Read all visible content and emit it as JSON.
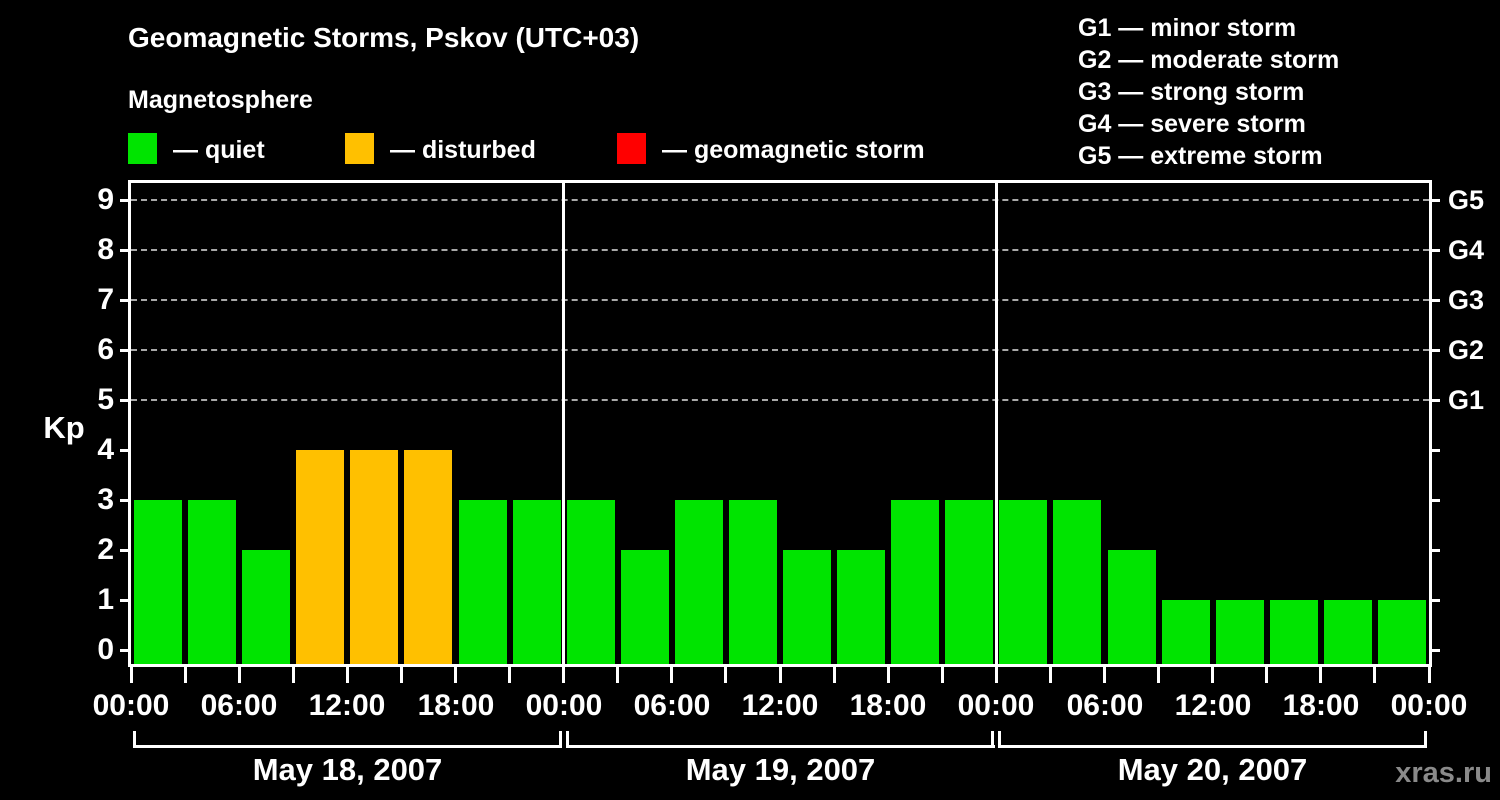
{
  "header": {
    "title": "Geomagnetic Storms, Pskov (UTC+03)",
    "subtitle": "Magnetosphere"
  },
  "legend": {
    "items": [
      {
        "name": "quiet",
        "label": "— quiet",
        "color": "#00e400"
      },
      {
        "name": "disturbed",
        "label": "— disturbed",
        "color": "#ffc000"
      },
      {
        "name": "geomagnetic-storm",
        "label": "— geomagnetic storm",
        "color": "#ff0000"
      }
    ]
  },
  "storm_scale_legend": [
    "G1 — minor storm",
    "G2 — moderate storm",
    "G3 — strong storm",
    "G4 — severe storm",
    "G5 — extreme storm"
  ],
  "watermark": "xras.ru",
  "chart_data": {
    "type": "bar",
    "title": "Geomagnetic Storms, Pskov (UTC+03)",
    "ylabel": "Kp",
    "xlabel": "",
    "ylim": [
      -0.28,
      9.4
    ],
    "yticks": [
      0,
      1,
      2,
      3,
      4,
      5,
      6,
      7,
      8,
      9
    ],
    "gridlines_at_kp": [
      5,
      6,
      7,
      8,
      9
    ],
    "grid_color": "#a8a8a8",
    "grid_style": "dashed",
    "right_axis_labels": [
      {
        "kp": 5,
        "label": "G1"
      },
      {
        "kp": 6,
        "label": "G2"
      },
      {
        "kp": 7,
        "label": "G3"
      },
      {
        "kp": 8,
        "label": "G4"
      },
      {
        "kp": 9,
        "label": "G5"
      }
    ],
    "colors": {
      "quiet": "#00e400",
      "disturbed": "#ffc000",
      "storm": "#ff0000"
    },
    "color_rule": {
      "quiet_kp_max": 3,
      "disturbed_kp_max": 4
    },
    "bar_interval_hours": 3,
    "x_tick_interval_hours": 3,
    "x_label_interval_hours": 6,
    "x_tick_labels": [
      "00:00",
      "06:00",
      "12:00",
      "18:00",
      "00:00",
      "06:00",
      "12:00",
      "18:00",
      "00:00",
      "06:00",
      "12:00",
      "18:00",
      "00:00"
    ],
    "days": [
      {
        "date": "May 18, 2007",
        "kp_values": [
          3,
          3,
          2,
          4,
          4,
          4,
          3,
          3
        ]
      },
      {
        "date": "May 19, 2007",
        "kp_values": [
          3,
          2,
          3,
          3,
          2,
          2,
          3,
          3
        ]
      },
      {
        "date": "May 20, 2007",
        "kp_values": [
          3,
          3,
          2,
          1,
          1,
          1,
          1,
          1
        ]
      }
    ]
  }
}
